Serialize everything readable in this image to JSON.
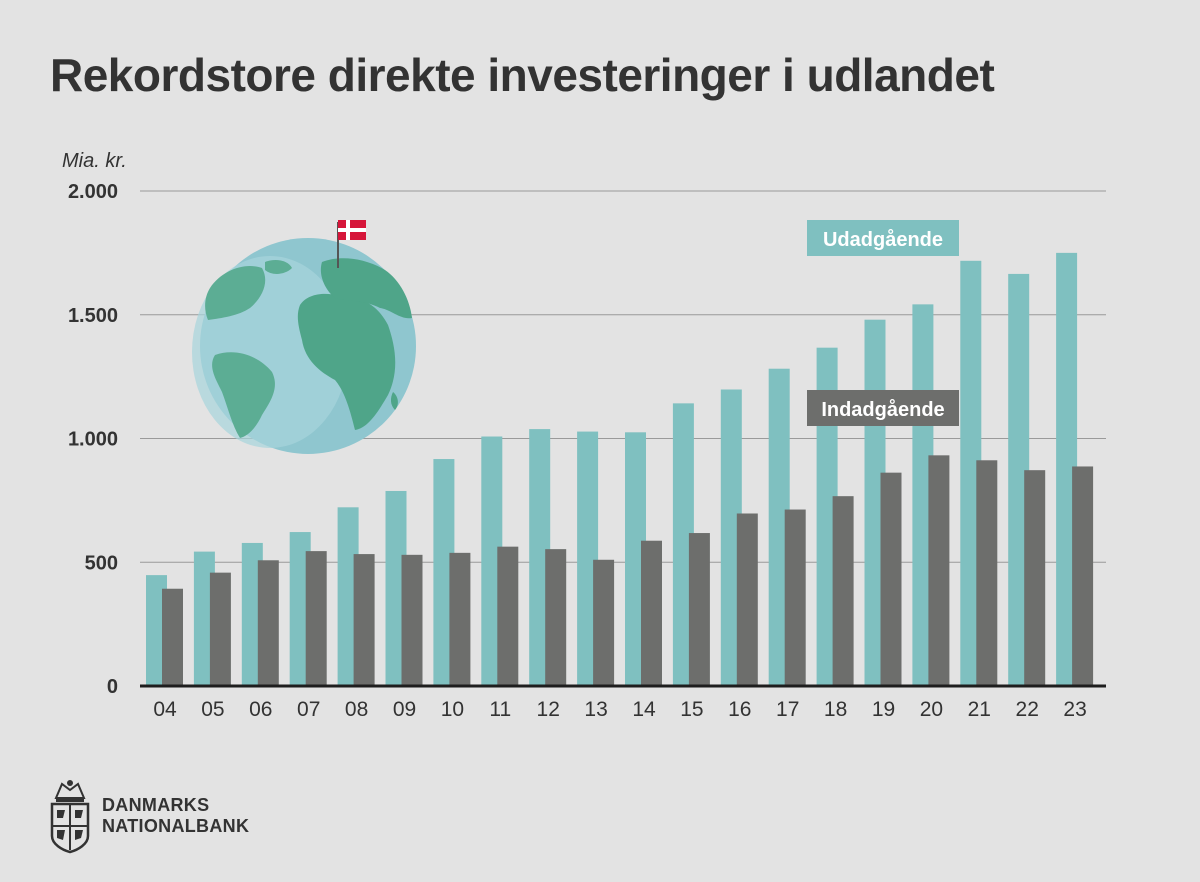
{
  "title": "Rekordstore direkte investeringer i udlandet",
  "colors": {
    "background": "#e3e3e3",
    "udadgaende": "#7fc0c0",
    "indadgaende": "#6d6e6c",
    "grid": "#9a9a9a",
    "text": "#333333"
  },
  "chart_data": {
    "type": "bar",
    "title": "Rekordstore direkte investeringer i udlandet",
    "ylabel": "Mia. kr.",
    "xlabel": "",
    "ylim": [
      0,
      2000
    ],
    "yticks": [
      0,
      500,
      1000,
      1500,
      2000
    ],
    "ytick_labels": [
      "0",
      "500",
      "1.000",
      "1.500",
      "2.000"
    ],
    "categories": [
      "04",
      "05",
      "06",
      "07",
      "08",
      "09",
      "10",
      "11",
      "12",
      "13",
      "14",
      "15",
      "16",
      "17",
      "18",
      "19",
      "20",
      "21",
      "22",
      "23"
    ],
    "series": [
      {
        "name": "Udadgående",
        "color": "#7fc0c0",
        "values": [
          448,
          543,
          578,
          622,
          722,
          788,
          917,
          1008,
          1038,
          1028,
          1025,
          1142,
          1198,
          1282,
          1367,
          1480,
          1542,
          1718,
          1665,
          1750
        ]
      },
      {
        "name": "Indadgående",
        "color": "#6d6e6c",
        "values": [
          393,
          458,
          508,
          545,
          533,
          530,
          538,
          563,
          553,
          510,
          587,
          618,
          697,
          713,
          767,
          862,
          932,
          912,
          872,
          887
        ]
      }
    ]
  },
  "logo": {
    "line1": "DANMARKS",
    "line2": "NATIONALBANK"
  }
}
